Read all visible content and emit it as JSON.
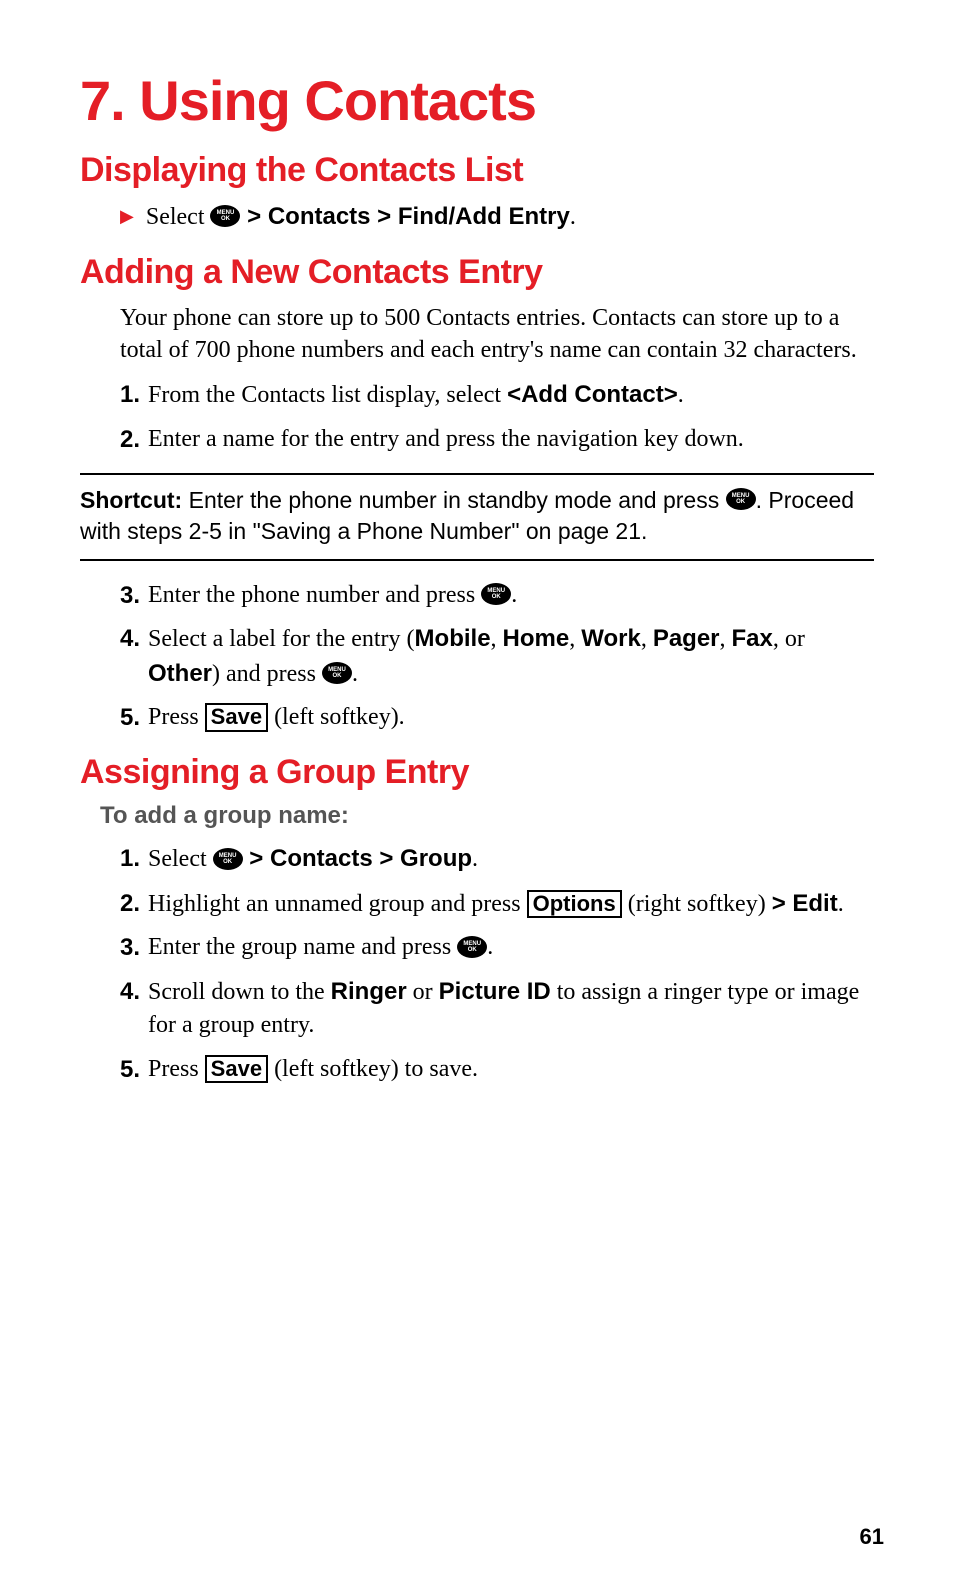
{
  "page_number": "61",
  "chapter_title": "7. Using Contacts",
  "section1": {
    "heading": "Displaying the Contacts List",
    "bullet_prefix": "Select ",
    "bullet_path": " > Contacts > Find/Add Entry",
    "bullet_suffix": "."
  },
  "section2": {
    "heading": "Adding a New Contacts Entry",
    "intro": "Your phone can store up to 500 Contacts entries. Contacts can store up to a total of 700 phone numbers and each entry's name can contain 32 characters.",
    "step1_num": "1.",
    "step1_a": "From the Contacts list display, select ",
    "step1_b": "<Add Contact>",
    "step1_c": ".",
    "step2_num": "2.",
    "step2": "Enter a name for the entry and press the navigation key down.",
    "shortcut_label": "Shortcut:",
    "shortcut_a": " Enter the phone number in standby mode and press ",
    "shortcut_b": ". Proceed with steps 2-5 in \"Saving a Phone Number\" on page 21.",
    "step3_num": "3.",
    "step3_a": "Enter the phone number and press ",
    "step3_b": ".",
    "step4_num": "4.",
    "step4_a": "Select a label for the entry (",
    "step4_mobile": "Mobile",
    "step4_c1": ", ",
    "step4_home": "Home",
    "step4_c2": ", ",
    "step4_work": "Work",
    "step4_c3": ", ",
    "step4_pager": "Pager",
    "step4_c4": ", ",
    "step4_fax": "Fax",
    "step4_c5": ", or ",
    "step4_other": "Other",
    "step4_b": ") and press ",
    "step4_end": ".",
    "step5_num": "5.",
    "step5_a": "Press ",
    "step5_save": "Save",
    "step5_b": " (left softkey)."
  },
  "section3": {
    "heading": "Assigning a Group Entry",
    "sub": "To add a group name:",
    "step1_num": "1.",
    "step1_a": "Select ",
    "step1_path": " > Contacts > Group",
    "step1_b": ".",
    "step2_num": "2.",
    "step2_a": "Highlight an unnamed group and press ",
    "step2_options": "Options",
    "step2_b": " (right softkey) ",
    "step2_edit": "> Edit",
    "step2_c": ".",
    "step3_num": "3.",
    "step3_a": "Enter the group name and press ",
    "step3_b": ".",
    "step4_num": "4.",
    "step4_a": "Scroll down to the ",
    "step4_ringer": "Ringer",
    "step4_b": " or ",
    "step4_pictureid": "Picture ID",
    "step4_c": " to assign a ringer type or image for a group entry.",
    "step5_num": "5.",
    "step5_a": "Press ",
    "step5_save": "Save",
    "step5_b": " (left softkey) to save."
  },
  "menu_ok_l1": "MENU",
  "menu_ok_l2": "OK"
}
